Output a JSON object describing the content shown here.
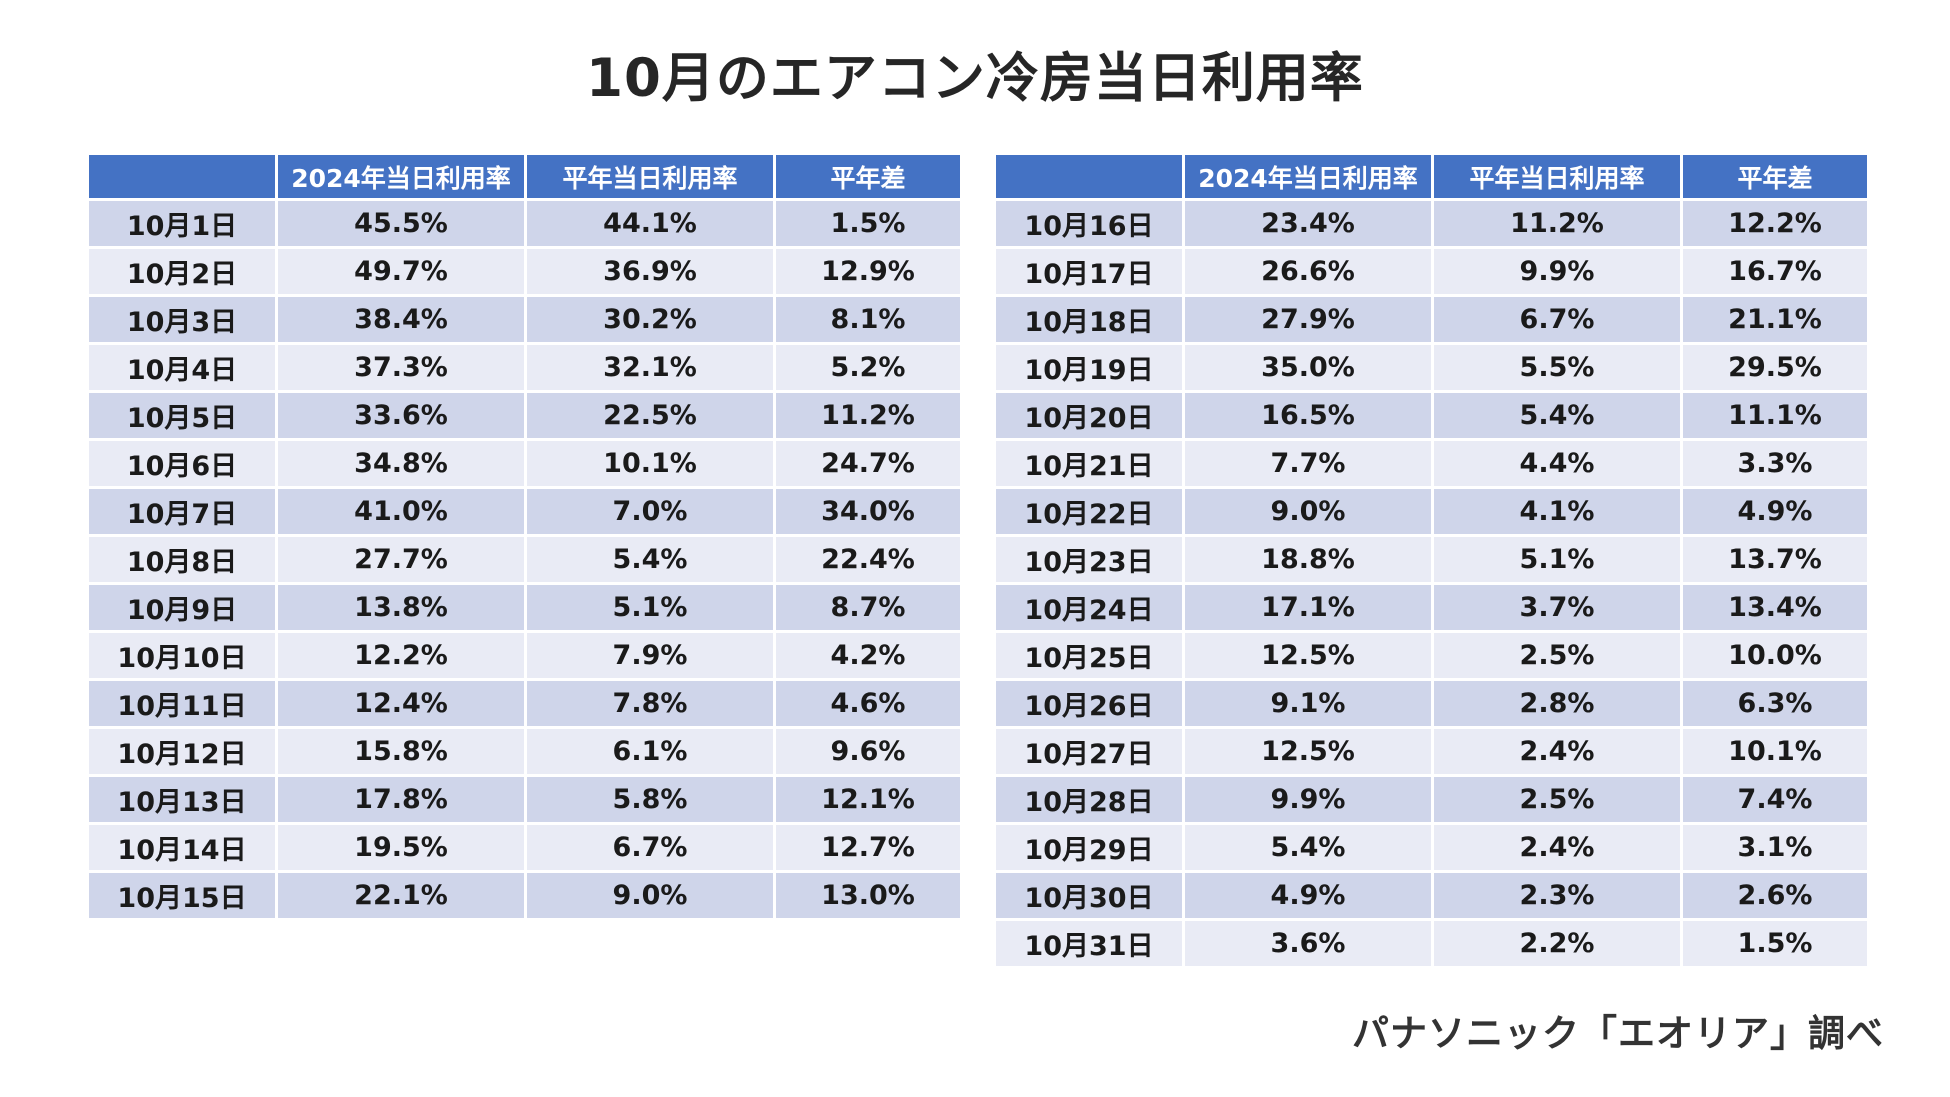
{
  "title": "10月のエアコン冷房当日利用率",
  "headers": [
    "",
    "2024年当日利用率",
    "平年当日利用率",
    "平年差"
  ],
  "left_rows": [
    [
      "10月1日",
      "45.5%",
      "44.1%",
      "1.5%"
    ],
    [
      "10月2日",
      "49.7%",
      "36.9%",
      "12.9%"
    ],
    [
      "10月3日",
      "38.4%",
      "30.2%",
      "8.1%"
    ],
    [
      "10月4日",
      "37.3%",
      "32.1%",
      "5.2%"
    ],
    [
      "10月5日",
      "33.6%",
      "22.5%",
      "11.2%"
    ],
    [
      "10月6日",
      "34.8%",
      "10.1%",
      "24.7%"
    ],
    [
      "10月7日",
      "41.0%",
      "7.0%",
      "34.0%"
    ],
    [
      "10月8日",
      "27.7%",
      "5.4%",
      "22.4%"
    ],
    [
      "10月9日",
      "13.8%",
      "5.1%",
      "8.7%"
    ],
    [
      "10月10日",
      "12.2%",
      "7.9%",
      "4.2%"
    ],
    [
      "10月11日",
      "12.4%",
      "7.8%",
      "4.6%"
    ],
    [
      "10月12日",
      "15.8%",
      "6.1%",
      "9.6%"
    ],
    [
      "10月13日",
      "17.8%",
      "5.8%",
      "12.1%"
    ],
    [
      "10月14日",
      "19.5%",
      "6.7%",
      "12.7%"
    ],
    [
      "10月15日",
      "22.1%",
      "9.0%",
      "13.0%"
    ]
  ],
  "right_rows": [
    [
      "10月16日",
      "23.4%",
      "11.2%",
      "12.2%"
    ],
    [
      "10月17日",
      "26.6%",
      "9.9%",
      "16.7%"
    ],
    [
      "10月18日",
      "27.9%",
      "6.7%",
      "21.1%"
    ],
    [
      "10月19日",
      "35.0%",
      "5.5%",
      "29.5%"
    ],
    [
      "10月20日",
      "16.5%",
      "5.4%",
      "11.1%"
    ],
    [
      "10月21日",
      "7.7%",
      "4.4%",
      "3.3%"
    ],
    [
      "10月22日",
      "9.0%",
      "4.1%",
      "4.9%"
    ],
    [
      "10月23日",
      "18.8%",
      "5.1%",
      "13.7%"
    ],
    [
      "10月24日",
      "17.1%",
      "3.7%",
      "13.4%"
    ],
    [
      "10月25日",
      "12.5%",
      "2.5%",
      "10.0%"
    ],
    [
      "10月26日",
      "9.1%",
      "2.8%",
      "6.3%"
    ],
    [
      "10月27日",
      "12.5%",
      "2.4%",
      "10.1%"
    ],
    [
      "10月28日",
      "9.9%",
      "2.5%",
      "7.4%"
    ],
    [
      "10月29日",
      "5.4%",
      "2.4%",
      "3.1%"
    ],
    [
      "10月30日",
      "4.9%",
      "2.3%",
      "2.6%"
    ],
    [
      "10月31日",
      "3.6%",
      "2.2%",
      "1.5%"
    ]
  ],
  "source": "パナソニック「エオリア」調べ",
  "colors": {
    "header_bg": "#4472c4",
    "row_odd": "#cfd5ea",
    "row_even": "#e9ebf5"
  }
}
